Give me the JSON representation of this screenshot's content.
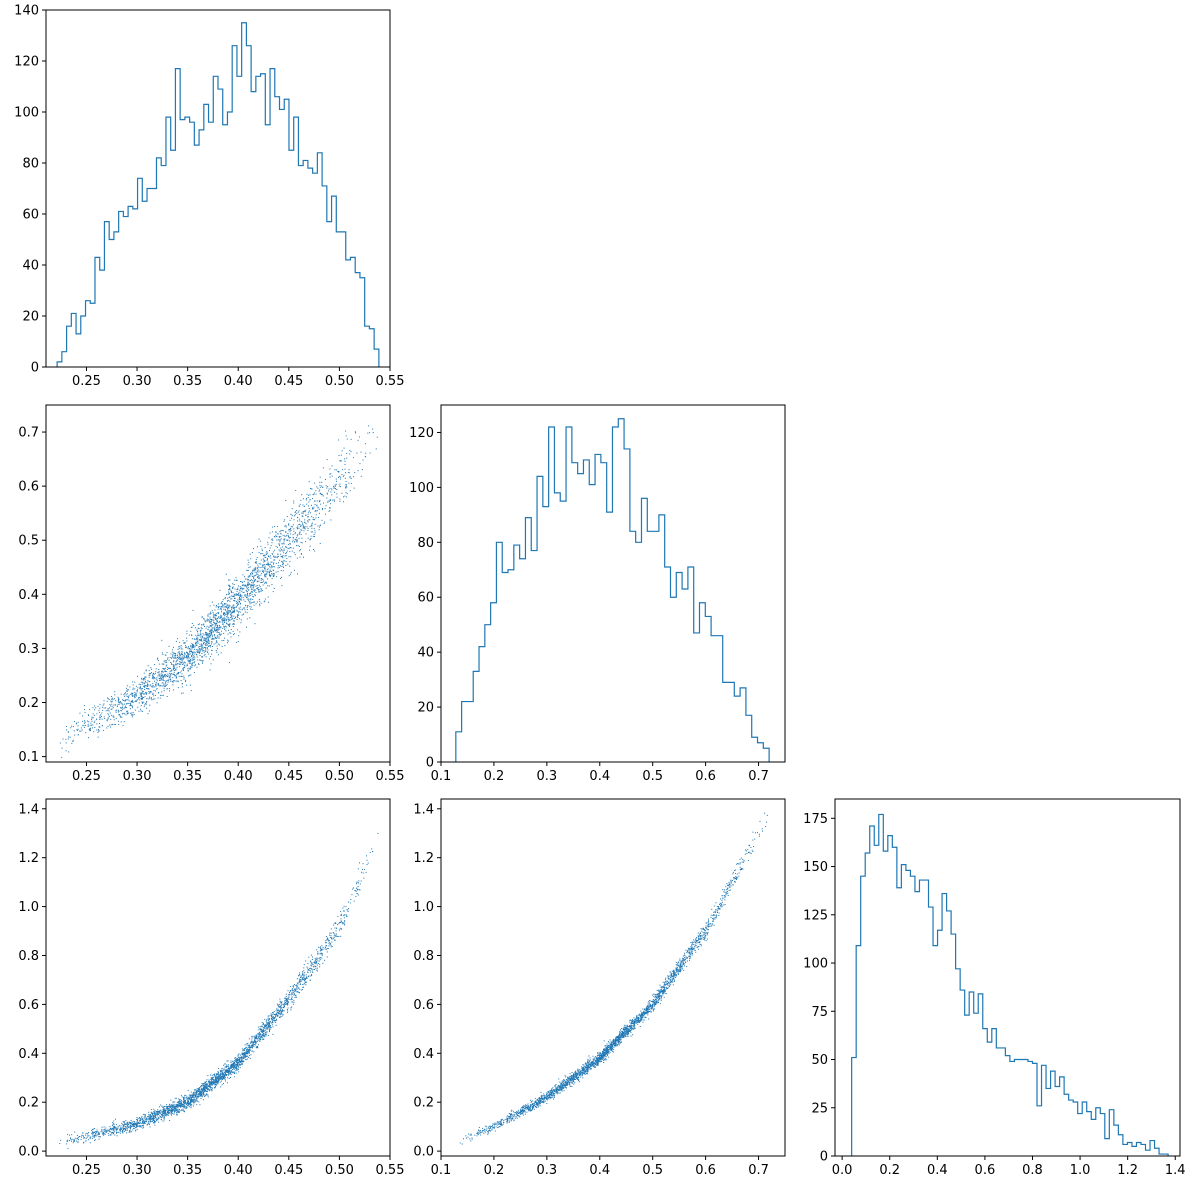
{
  "style": {
    "series_color": "#1f77b4",
    "background": "#ffffff"
  },
  "chart_data": [
    {
      "id": "hist-0",
      "type": "histogram",
      "title": "",
      "xlabel": "",
      "ylabel": "",
      "xlim": [
        0.21,
        0.55
      ],
      "ylim": [
        0,
        140
      ],
      "xticks": [
        0.25,
        0.3,
        0.35,
        0.4,
        0.45,
        0.5,
        0.55
      ],
      "xtick_labels": [
        "0.25",
        "0.30",
        "0.35",
        "0.40",
        "0.45",
        "0.50",
        "0.55"
      ],
      "yticks": [
        0,
        20,
        40,
        60,
        80,
        100,
        120,
        140
      ],
      "ytick_labels": [
        "0",
        "20",
        "40",
        "60",
        "80",
        "100",
        "120",
        "140"
      ],
      "bin_range": [
        0.221,
        0.539
      ],
      "counts": [
        2,
        6,
        16,
        21,
        13,
        20,
        26,
        25,
        43,
        38,
        57,
        50,
        53,
        61,
        59,
        63,
        62,
        74,
        65,
        70,
        70,
        82,
        79,
        98,
        85,
        117,
        97,
        98,
        96,
        87,
        93,
        103,
        96,
        114,
        109,
        95,
        100,
        126,
        114,
        135,
        126,
        108,
        114,
        115,
        95,
        117,
        106,
        101,
        105,
        85,
        98,
        79,
        81,
        78,
        76,
        84,
        71,
        57,
        67,
        53,
        53,
        42,
        43,
        37,
        35,
        16,
        15,
        7
      ]
    },
    {
      "id": "scatter-1-0",
      "type": "scatter",
      "title": "",
      "xlabel": "",
      "ylabel": "",
      "xlim": [
        0.21,
        0.55
      ],
      "ylim": [
        0.09,
        0.75
      ],
      "xticks": [
        0.25,
        0.3,
        0.35,
        0.4,
        0.45,
        0.5,
        0.55
      ],
      "xtick_labels": [
        "0.25",
        "0.30",
        "0.35",
        "0.40",
        "0.45",
        "0.50",
        "0.55"
      ],
      "yticks": [
        0.1,
        0.2,
        0.3,
        0.4,
        0.5,
        0.6,
        0.7
      ],
      "ytick_labels": [
        "0.1",
        "0.2",
        "0.3",
        "0.4",
        "0.5",
        "0.6",
        "0.7"
      ],
      "trend": {
        "x": [
          0.22,
          0.25,
          0.3,
          0.35,
          0.4,
          0.45,
          0.5,
          0.54
        ],
        "y": [
          0.125,
          0.16,
          0.21,
          0.285,
          0.385,
          0.5,
          0.61,
          0.71
        ]
      },
      "band_halfwidth": 0.025,
      "n_points": 2600
    },
    {
      "id": "hist-1",
      "type": "histogram",
      "title": "",
      "xlabel": "",
      "ylabel": "",
      "xlim": [
        0.1,
        0.75
      ],
      "ylim": [
        0,
        130
      ],
      "xticks": [
        0.1,
        0.2,
        0.3,
        0.4,
        0.5,
        0.6,
        0.7
      ],
      "xtick_labels": [
        "0.1",
        "0.2",
        "0.3",
        "0.4",
        "0.5",
        "0.6",
        "0.7"
      ],
      "yticks": [
        0,
        20,
        40,
        60,
        80,
        100,
        120
      ],
      "ytick_labels": [
        "0",
        "20",
        "40",
        "60",
        "80",
        "100",
        "120"
      ],
      "bin_range": [
        0.128,
        0.72
      ],
      "counts": [
        11,
        22,
        22,
        33,
        42,
        50,
        58,
        80,
        69,
        70,
        79,
        74,
        89,
        77,
        104,
        93,
        122,
        98,
        95,
        122,
        109,
        105,
        110,
        101,
        112,
        109,
        91,
        122,
        125,
        114,
        84,
        80,
        96,
        84,
        84,
        90,
        71,
        60,
        69,
        63,
        71,
        47,
        58,
        53,
        46,
        46,
        29,
        29,
        24,
        27,
        17,
        9,
        7,
        5
      ]
    },
    {
      "id": "scatter-2-0",
      "type": "scatter",
      "title": "",
      "xlabel": "",
      "ylabel": "",
      "xlim": [
        0.21,
        0.55
      ],
      "ylim": [
        -0.02,
        1.44
      ],
      "xticks": [
        0.25,
        0.3,
        0.35,
        0.4,
        0.45,
        0.5,
        0.55
      ],
      "xtick_labels": [
        "0.25",
        "0.30",
        "0.35",
        "0.40",
        "0.45",
        "0.50",
        "0.55"
      ],
      "yticks": [
        0.0,
        0.2,
        0.4,
        0.6,
        0.8,
        1.0,
        1.2,
        1.4
      ],
      "ytick_labels": [
        "0.0",
        "0.2",
        "0.4",
        "0.6",
        "0.8",
        "1.0",
        "1.2",
        "1.4"
      ],
      "trend": {
        "x": [
          0.22,
          0.25,
          0.3,
          0.35,
          0.4,
          0.45,
          0.5,
          0.54
        ],
        "y": [
          0.04,
          0.06,
          0.11,
          0.2,
          0.36,
          0.62,
          0.92,
          1.3
        ]
      },
      "band_halfwidth": 0.02,
      "n_points": 2600
    },
    {
      "id": "scatter-2-1",
      "type": "scatter",
      "title": "",
      "xlabel": "",
      "ylabel": "",
      "xlim": [
        0.1,
        0.75
      ],
      "ylim": [
        -0.02,
        1.44
      ],
      "xticks": [
        0.1,
        0.2,
        0.3,
        0.4,
        0.5,
        0.6,
        0.7
      ],
      "xtick_labels": [
        "0.1",
        "0.2",
        "0.3",
        "0.4",
        "0.5",
        "0.6",
        "0.7"
      ],
      "yticks": [
        0.0,
        0.2,
        0.4,
        0.6,
        0.8,
        1.0,
        1.2,
        1.4
      ],
      "ytick_labels": [
        "0.0",
        "0.2",
        "0.4",
        "0.6",
        "0.8",
        "1.0",
        "1.2",
        "1.4"
      ],
      "trend": {
        "x": [
          0.13,
          0.2,
          0.3,
          0.4,
          0.5,
          0.6,
          0.7,
          0.72
        ],
        "y": [
          0.04,
          0.1,
          0.22,
          0.38,
          0.6,
          0.9,
          1.3,
          1.37
        ]
      },
      "band_halfwidth": 0.015,
      "n_points": 2600
    },
    {
      "id": "hist-2",
      "type": "histogram",
      "title": "",
      "xlabel": "",
      "ylabel": "",
      "xlim": [
        -0.03,
        1.42
      ],
      "ylim": [
        0,
        185
      ],
      "xticks": [
        0.0,
        0.2,
        0.4,
        0.6,
        0.8,
        1.0,
        1.2,
        1.4
      ],
      "xtick_labels": [
        "0.0",
        "0.2",
        "0.4",
        "0.6",
        "0.8",
        "1.0",
        "1.2",
        "1.4"
      ],
      "yticks": [
        0,
        25,
        50,
        75,
        100,
        125,
        150,
        175
      ],
      "ytick_labels": [
        "0",
        "25",
        "50",
        "75",
        "100",
        "125",
        "150",
        "175"
      ],
      "bin_range": [
        0.04,
        1.37
      ],
      "counts": [
        51,
        109,
        145,
        157,
        171,
        161,
        177,
        158,
        166,
        160,
        139,
        151,
        148,
        145,
        137,
        143,
        143,
        129,
        109,
        117,
        136,
        127,
        115,
        97,
        86,
        73,
        85,
        74,
        84,
        66,
        59,
        66,
        56,
        56,
        52,
        49,
        50,
        50,
        50,
        49,
        48,
        26,
        47,
        35,
        44,
        36,
        41,
        32,
        29,
        28,
        22,
        28,
        23,
        19,
        25,
        22,
        9,
        24,
        16,
        11,
        6,
        7,
        5,
        7,
        6,
        3,
        8,
        4,
        1,
        1
      ]
    }
  ]
}
